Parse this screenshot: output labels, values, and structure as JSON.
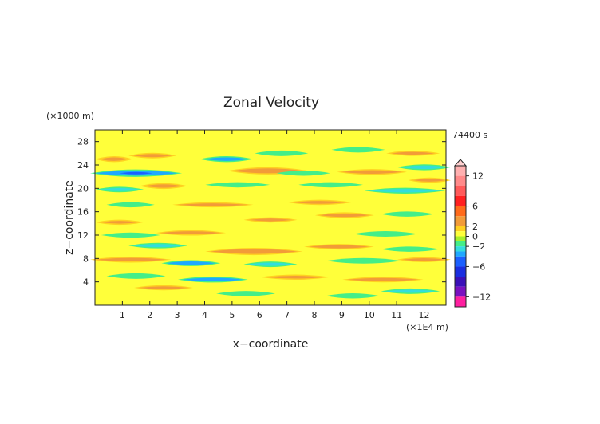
{
  "chart_data": {
    "type": "heatmap",
    "title": "Zonal Velocity",
    "xlabel": "x−coordinate",
    "ylabel": "z−coordinate",
    "x_unit_label": "(×1E4 m)",
    "y_unit_label": "(×1000 m)",
    "time_label": "74400 s",
    "xlim": [
      0,
      12.8
    ],
    "ylim": [
      0,
      30
    ],
    "x_ticks": [
      "1",
      "2",
      "3",
      "4",
      "5",
      "6",
      "7",
      "8",
      "9",
      "10",
      "11",
      "12"
    ],
    "y_ticks": [
      "4",
      "8",
      "12",
      "16",
      "20",
      "24",
      "28"
    ],
    "colorbar": {
      "ticks": [
        "12",
        "6",
        "2",
        "0",
        "−2",
        "−6",
        "−12"
      ],
      "range": [
        -14,
        14
      ],
      "levels": [
        {
          "min": 12,
          "max": 14,
          "color": "#ffb0b0"
        },
        {
          "min": 10,
          "max": 12,
          "color": "#ff8a8a"
        },
        {
          "min": 8,
          "max": 10,
          "color": "#ff5a5a"
        },
        {
          "min": 6,
          "max": 8,
          "color": "#ff2020"
        },
        {
          "min": 4,
          "max": 6,
          "color": "#ff6a1a"
        },
        {
          "min": 2,
          "max": 4,
          "color": "#f29b38"
        },
        {
          "min": 1,
          "max": 2,
          "color": "#ffd020"
        },
        {
          "min": 0,
          "max": 1,
          "color": "#ffff3a"
        },
        {
          "min": -1,
          "max": 0,
          "color": "#a8f02a"
        },
        {
          "min": -2,
          "max": -1,
          "color": "#44ee88"
        },
        {
          "min": -3,
          "max": -2,
          "color": "#33dddd"
        },
        {
          "min": -4,
          "max": -3,
          "color": "#1fa8ff"
        },
        {
          "min": -6,
          "max": -4,
          "color": "#1b60ff"
        },
        {
          "min": -8,
          "max": -6,
          "color": "#1a2ee0"
        },
        {
          "min": -10,
          "max": -8,
          "color": "#3a10b8"
        },
        {
          "min": -12,
          "max": -10,
          "color": "#7a10c0"
        },
        {
          "min": -14,
          "max": -12,
          "color": "#ff1fa0"
        }
      ]
    },
    "bands": [
      {
        "x": [
          0.2,
          1.2
        ],
        "z": 25.0,
        "dz": 1.0,
        "v": 2.5
      },
      {
        "x": [
          1.4,
          2.8
        ],
        "z": 25.6,
        "dz": 0.9,
        "v": 2.5
      },
      {
        "x": [
          4.0,
          5.6
        ],
        "z": 25.0,
        "dz": 1.0,
        "v": -3.5
      },
      {
        "x": [
          6.0,
          7.6
        ],
        "z": 26.0,
        "dz": 0.9,
        "v": -2.0
      },
      {
        "x": [
          8.8,
          10.4
        ],
        "z": 26.6,
        "dz": 0.9,
        "v": -2.0
      },
      {
        "x": [
          10.8,
          12.4
        ],
        "z": 26.0,
        "dz": 0.8,
        "v": 2.5
      },
      {
        "x": [
          0.0,
          3.0
        ],
        "z": 22.6,
        "dz": 1.4,
        "v": -4.5
      },
      {
        "x": [
          5.0,
          7.6
        ],
        "z": 23.0,
        "dz": 1.4,
        "v": 2.5
      },
      {
        "x": [
          6.8,
          8.4
        ],
        "z": 22.6,
        "dz": 0.8,
        "v": -2.0
      },
      {
        "x": [
          9.0,
          11.2
        ],
        "z": 22.8,
        "dz": 1.0,
        "v": 2.5
      },
      {
        "x": [
          11.2,
          12.8
        ],
        "z": 23.6,
        "dz": 1.0,
        "v": -3.0
      },
      {
        "x": [
          0.2,
          1.6
        ],
        "z": 19.8,
        "dz": 0.9,
        "v": -2.5
      },
      {
        "x": [
          1.8,
          3.2
        ],
        "z": 20.4,
        "dz": 1.0,
        "v": 2.5
      },
      {
        "x": [
          4.2,
          6.2
        ],
        "z": 20.6,
        "dz": 0.8,
        "v": -2.0
      },
      {
        "x": [
          7.6,
          9.6
        ],
        "z": 20.6,
        "dz": 0.8,
        "v": -2.0
      },
      {
        "x": [
          10.0,
          12.6
        ],
        "z": 19.6,
        "dz": 1.0,
        "v": -2.5
      },
      {
        "x": [
          11.6,
          12.8
        ],
        "z": 21.4,
        "dz": 0.8,
        "v": 2.5
      },
      {
        "x": [
          0.6,
          2.0
        ],
        "z": 17.2,
        "dz": 0.8,
        "v": -2.0
      },
      {
        "x": [
          3.0,
          5.6
        ],
        "z": 17.2,
        "dz": 0.8,
        "v": 2.5
      },
      {
        "x": [
          7.2,
          9.2
        ],
        "z": 17.6,
        "dz": 0.8,
        "v": 2.5
      },
      {
        "x": [
          8.2,
          10.0
        ],
        "z": 15.4,
        "dz": 1.0,
        "v": 2.5
      },
      {
        "x": [
          10.6,
          12.2
        ],
        "z": 15.6,
        "dz": 0.8,
        "v": -2.0
      },
      {
        "x": [
          0.2,
          1.6
        ],
        "z": 14.2,
        "dz": 0.8,
        "v": 2.5
      },
      {
        "x": [
          5.6,
          7.2
        ],
        "z": 14.6,
        "dz": 0.8,
        "v": 2.5
      },
      {
        "x": [
          0.4,
          2.2
        ],
        "z": 12.0,
        "dz": 0.8,
        "v": -2.0
      },
      {
        "x": [
          2.4,
          4.6
        ],
        "z": 12.4,
        "dz": 0.9,
        "v": 2.5
      },
      {
        "x": [
          9.6,
          11.6
        ],
        "z": 12.2,
        "dz": 0.9,
        "v": -2.0
      },
      {
        "x": [
          1.4,
          3.2
        ],
        "z": 10.2,
        "dz": 0.9,
        "v": -2.5
      },
      {
        "x": [
          4.2,
          7.4
        ],
        "z": 9.2,
        "dz": 1.4,
        "v": 2.5
      },
      {
        "x": [
          7.8,
          10.0
        ],
        "z": 10.0,
        "dz": 0.9,
        "v": 2.5
      },
      {
        "x": [
          10.6,
          12.4
        ],
        "z": 9.6,
        "dz": 0.8,
        "v": -2.0
      },
      {
        "x": [
          0.0,
          2.6
        ],
        "z": 7.8,
        "dz": 1.0,
        "v": 2.5
      },
      {
        "x": [
          2.6,
          4.4
        ],
        "z": 7.2,
        "dz": 1.0,
        "v": -3.5
      },
      {
        "x": [
          5.6,
          7.2
        ],
        "z": 7.0,
        "dz": 0.9,
        "v": -2.5
      },
      {
        "x": [
          8.6,
          11.0
        ],
        "z": 7.6,
        "dz": 0.9,
        "v": -2.0
      },
      {
        "x": [
          11.2,
          12.8
        ],
        "z": 7.8,
        "dz": 0.8,
        "v": 2.5
      },
      {
        "x": [
          0.6,
          2.4
        ],
        "z": 5.0,
        "dz": 0.9,
        "v": -2.0
      },
      {
        "x": [
          3.2,
          5.4
        ],
        "z": 4.4,
        "dz": 1.0,
        "v": -3.5
      },
      {
        "x": [
          6.2,
          8.4
        ],
        "z": 4.8,
        "dz": 0.8,
        "v": 2.5
      },
      {
        "x": [
          9.2,
          11.8
        ],
        "z": 4.4,
        "dz": 0.9,
        "v": 2.5
      },
      {
        "x": [
          1.6,
          3.4
        ],
        "z": 3.0,
        "dz": 0.8,
        "v": 2.5
      },
      {
        "x": [
          4.6,
          6.4
        ],
        "z": 2.0,
        "dz": 0.8,
        "v": -2.0
      },
      {
        "x": [
          8.6,
          10.2
        ],
        "z": 1.6,
        "dz": 0.8,
        "v": -2.0
      },
      {
        "x": [
          10.6,
          12.4
        ],
        "z": 2.4,
        "dz": 0.9,
        "v": -2.5
      }
    ]
  }
}
